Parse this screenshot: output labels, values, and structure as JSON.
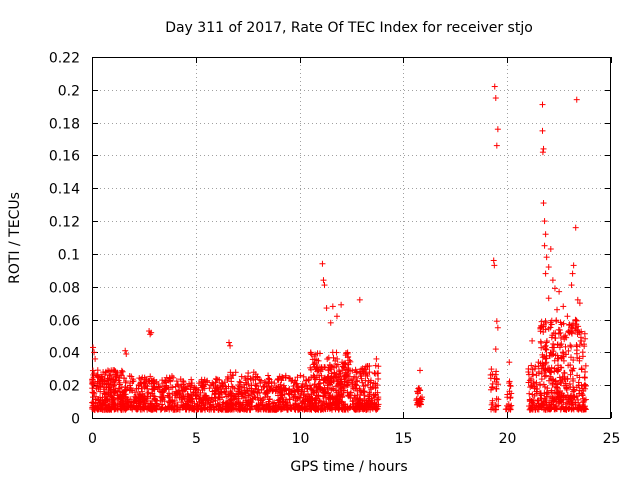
{
  "chart_data": {
    "type": "scatter",
    "title": "Day 311 of 2017, Rate Of TEC Index for receiver stjo",
    "xlabel": "GPS time / hours",
    "ylabel": "ROTI / TECUs",
    "xlim": [
      0,
      25
    ],
    "ylim": [
      0,
      0.22
    ],
    "x_ticks": [
      0,
      5,
      10,
      15,
      20,
      25
    ],
    "y_ticks": [
      0,
      0.02,
      0.04,
      0.06,
      0.08,
      0.1,
      0.12,
      0.14,
      0.16,
      0.18,
      0.2,
      0.22
    ],
    "x_tick_labels": [
      "0",
      "5",
      "10",
      "15",
      "20",
      "25"
    ],
    "y_tick_labels": [
      "0",
      "0.02",
      "0.04",
      "0.06",
      "0.08",
      "0.1",
      "0.12",
      "0.14",
      "0.16",
      "0.18",
      "0.2",
      "0.22"
    ],
    "grid": true,
    "marker": "+",
    "series": [
      {
        "name": "ROTI",
        "color": "#ff0000",
        "bands": [
          {
            "x": [
              0.0,
              1.5
            ],
            "y": [
              0.005,
              0.03
            ],
            "n": 260
          },
          {
            "x": [
              1.5,
              4.0
            ],
            "y": [
              0.005,
              0.026
            ],
            "n": 300
          },
          {
            "x": [
              4.0,
              6.5
            ],
            "y": [
              0.005,
              0.024
            ],
            "n": 300
          },
          {
            "x": [
              6.5,
              8.0
            ],
            "y": [
              0.005,
              0.028
            ],
            "n": 200
          },
          {
            "x": [
              8.0,
              10.5
            ],
            "y": [
              0.005,
              0.026
            ],
            "n": 300
          },
          {
            "x": [
              10.5,
              12.5
            ],
            "y": [
              0.005,
              0.04
            ],
            "n": 380
          },
          {
            "x": [
              12.5,
              13.8
            ],
            "y": [
              0.005,
              0.032
            ],
            "n": 180
          },
          {
            "x": [
              15.6,
              15.9
            ],
            "y": [
              0.008,
              0.02
            ],
            "n": 25
          },
          {
            "x": [
              19.2,
              19.6
            ],
            "y": [
              0.005,
              0.03
            ],
            "n": 30
          },
          {
            "x": [
              19.9,
              20.2
            ],
            "y": [
              0.005,
              0.025
            ],
            "n": 20
          },
          {
            "x": [
              21.0,
              21.6
            ],
            "y": [
              0.005,
              0.035
            ],
            "n": 70
          },
          {
            "x": [
              21.6,
              23.8
            ],
            "y": [
              0.005,
              0.06
            ],
            "n": 420
          }
        ],
        "points": [
          {
            "x": 0.05,
            "y": 0.043
          },
          {
            "x": 0.1,
            "y": 0.04
          },
          {
            "x": 0.15,
            "y": 0.036
          },
          {
            "x": 1.6,
            "y": 0.041
          },
          {
            "x": 1.65,
            "y": 0.039
          },
          {
            "x": 2.75,
            "y": 0.053
          },
          {
            "x": 2.8,
            "y": 0.051
          },
          {
            "x": 2.85,
            "y": 0.052
          },
          {
            "x": 6.6,
            "y": 0.046
          },
          {
            "x": 6.65,
            "y": 0.044
          },
          {
            "x": 11.1,
            "y": 0.094
          },
          {
            "x": 11.15,
            "y": 0.084
          },
          {
            "x": 11.2,
            "y": 0.081
          },
          {
            "x": 11.3,
            "y": 0.067
          },
          {
            "x": 11.6,
            "y": 0.068
          },
          {
            "x": 12.0,
            "y": 0.069
          },
          {
            "x": 12.9,
            "y": 0.072
          },
          {
            "x": 11.8,
            "y": 0.062
          },
          {
            "x": 11.5,
            "y": 0.058
          },
          {
            "x": 19.4,
            "y": 0.202
          },
          {
            "x": 19.45,
            "y": 0.195
          },
          {
            "x": 19.55,
            "y": 0.176
          },
          {
            "x": 19.5,
            "y": 0.166
          },
          {
            "x": 19.35,
            "y": 0.096
          },
          {
            "x": 19.38,
            "y": 0.093
          },
          {
            "x": 19.5,
            "y": 0.059
          },
          {
            "x": 19.55,
            "y": 0.055
          },
          {
            "x": 19.45,
            "y": 0.042
          },
          {
            "x": 21.7,
            "y": 0.191
          },
          {
            "x": 21.7,
            "y": 0.175
          },
          {
            "x": 21.75,
            "y": 0.164
          },
          {
            "x": 21.72,
            "y": 0.162
          },
          {
            "x": 21.75,
            "y": 0.131
          },
          {
            "x": 21.8,
            "y": 0.12
          },
          {
            "x": 21.85,
            "y": 0.112
          },
          {
            "x": 21.8,
            "y": 0.105
          },
          {
            "x": 21.9,
            "y": 0.098
          },
          {
            "x": 22.1,
            "y": 0.103
          },
          {
            "x": 22.0,
            "y": 0.092
          },
          {
            "x": 21.85,
            "y": 0.088
          },
          {
            "x": 22.2,
            "y": 0.084
          },
          {
            "x": 22.3,
            "y": 0.079
          },
          {
            "x": 22.0,
            "y": 0.073
          },
          {
            "x": 22.5,
            "y": 0.077
          },
          {
            "x": 22.7,
            "y": 0.068
          },
          {
            "x": 23.2,
            "y": 0.093
          },
          {
            "x": 23.15,
            "y": 0.088
          },
          {
            "x": 23.3,
            "y": 0.116
          },
          {
            "x": 23.35,
            "y": 0.194
          },
          {
            "x": 23.4,
            "y": 0.072
          },
          {
            "x": 23.5,
            "y": 0.07
          },
          {
            "x": 23.1,
            "y": 0.081
          },
          {
            "x": 22.9,
            "y": 0.062
          },
          {
            "x": 23.0,
            "y": 0.057
          },
          {
            "x": 21.6,
            "y": 0.055
          },
          {
            "x": 22.4,
            "y": 0.066
          },
          {
            "x": 20.1,
            "y": 0.034
          },
          {
            "x": 21.2,
            "y": 0.047
          },
          {
            "x": 23.7,
            "y": 0.045
          },
          {
            "x": 13.7,
            "y": 0.036
          },
          {
            "x": 15.8,
            "y": 0.029
          }
        ]
      }
    ]
  }
}
